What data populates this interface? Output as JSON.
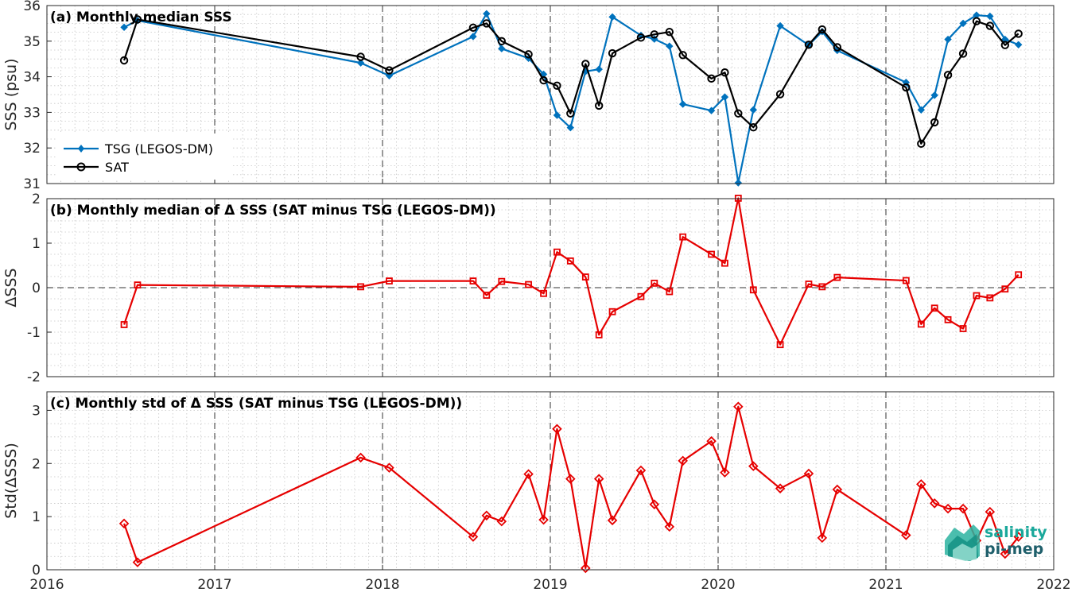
{
  "chart_data": [
    {
      "type": "line",
      "title": "(a) Monthly median SSS",
      "ylabel": "SSS (psu)",
      "xlabel": "",
      "xlim": [
        2016,
        2022
      ],
      "ylim": [
        31,
        36
      ],
      "xticks": [
        "2016",
        "2017",
        "2018",
        "2019",
        "2020",
        "2021",
        "2022"
      ],
      "yticks": [
        "31",
        "32",
        "33",
        "34",
        "35",
        "36"
      ],
      "grid": true,
      "legend_position": "lower-left",
      "series": [
        {
          "name": "TSG (LEGOS-DM)",
          "color": "#0072BD",
          "marker": "diamond",
          "x": [
            2016.46,
            2016.54,
            2017.87,
            2018.04,
            2018.54,
            2018.62,
            2018.71,
            2018.87,
            2018.96,
            2019.04,
            2019.12,
            2019.21,
            2019.29,
            2019.37,
            2019.54,
            2019.62,
            2019.71,
            2019.79,
            2019.96,
            2020.04,
            2020.12,
            2020.21,
            2020.37,
            2020.54,
            2020.62,
            2020.71,
            2021.12,
            2021.21,
            2021.29,
            2021.37,
            2021.46,
            2021.54,
            2021.62,
            2021.71,
            2021.79
          ],
          "y": [
            35.39,
            35.58,
            34.39,
            34.03,
            35.13,
            35.77,
            34.79,
            34.52,
            34.07,
            32.92,
            32.57,
            34.15,
            34.21,
            35.68,
            35.16,
            35.06,
            34.86,
            33.23,
            33.05,
            33.43,
            31.02,
            33.07,
            35.43,
            34.89,
            35.27,
            34.74,
            33.84,
            33.07,
            33.48,
            35.05,
            35.5,
            35.73,
            35.7,
            35.05,
            34.9
          ]
        },
        {
          "name": "SAT",
          "color": "#000000",
          "marker": "circle",
          "x": [
            2016.46,
            2016.54,
            2017.87,
            2018.04,
            2018.54,
            2018.62,
            2018.71,
            2018.87,
            2018.96,
            2019.04,
            2019.12,
            2019.21,
            2019.29,
            2019.37,
            2019.54,
            2019.62,
            2019.71,
            2019.79,
            2019.96,
            2020.04,
            2020.12,
            2020.21,
            2020.37,
            2020.54,
            2020.62,
            2020.71,
            2021.12,
            2021.21,
            2021.29,
            2021.37,
            2021.46,
            2021.54,
            2021.62,
            2021.71,
            2021.79
          ],
          "y": [
            34.46,
            35.61,
            34.56,
            34.18,
            35.38,
            35.5,
            35.0,
            34.63,
            33.9,
            33.75,
            32.97,
            34.36,
            33.19,
            34.66,
            35.1,
            35.19,
            35.26,
            34.61,
            33.95,
            34.12,
            32.97,
            32.58,
            33.51,
            34.9,
            35.33,
            34.83,
            33.7,
            32.12,
            32.72,
            34.05,
            34.65,
            35.56,
            35.43,
            34.89,
            35.21
          ]
        }
      ]
    },
    {
      "type": "line",
      "title": "(b) Monthly median of Δ SSS (SAT minus TSG (LEGOS-DM))",
      "ylabel": "ΔSSS",
      "xlabel": "",
      "xlim": [
        2016,
        2022
      ],
      "ylim": [
        -2,
        2
      ],
      "xticks": [
        "2016",
        "2017",
        "2018",
        "2019",
        "2020",
        "2021",
        "2022"
      ],
      "yticks": [
        "-2",
        "-1",
        "0",
        "1",
        "2"
      ],
      "grid": true,
      "series": [
        {
          "color": "#E60000",
          "marker": "square",
          "x": [
            2016.46,
            2016.54,
            2017.87,
            2018.04,
            2018.54,
            2018.62,
            2018.71,
            2018.87,
            2018.96,
            2019.04,
            2019.12,
            2019.21,
            2019.29,
            2019.37,
            2019.54,
            2019.62,
            2019.71,
            2019.79,
            2019.96,
            2020.04,
            2020.12,
            2020.21,
            2020.37,
            2020.54,
            2020.62,
            2020.71,
            2021.12,
            2021.21,
            2021.29,
            2021.37,
            2021.46,
            2021.54,
            2021.62,
            2021.71,
            2021.79
          ],
          "y": [
            -0.83,
            0.06,
            0.02,
            0.15,
            0.15,
            -0.17,
            0.14,
            0.07,
            -0.13,
            0.8,
            0.6,
            0.24,
            -1.06,
            -0.54,
            -0.2,
            0.1,
            -0.09,
            1.14,
            0.75,
            0.55,
            2.01,
            -0.05,
            -1.28,
            0.08,
            0.02,
            0.23,
            0.16,
            -0.82,
            -0.46,
            -0.72,
            -0.92,
            -0.18,
            -0.23,
            -0.03,
            0.29
          ]
        }
      ]
    },
    {
      "type": "line",
      "title": "(c) Monthly std of Δ SSS (SAT minus TSG (LEGOS-DM))",
      "ylabel": "Std(ΔSSS)",
      "xlabel": "",
      "xlim": [
        2016,
        2022
      ],
      "ylim": [
        0,
        3.35
      ],
      "xticks": [
        "2016",
        "2017",
        "2018",
        "2019",
        "2020",
        "2021",
        "2022"
      ],
      "yticks": [
        "0",
        "1",
        "2",
        "3"
      ],
      "grid": true,
      "series": [
        {
          "color": "#E60000",
          "marker": "diamond",
          "x": [
            2016.46,
            2016.54,
            2017.87,
            2018.04,
            2018.54,
            2018.62,
            2018.71,
            2018.87,
            2018.96,
            2019.04,
            2019.12,
            2019.21,
            2019.29,
            2019.37,
            2019.54,
            2019.62,
            2019.71,
            2019.79,
            2019.96,
            2020.04,
            2020.12,
            2020.21,
            2020.37,
            2020.54,
            2020.62,
            2020.71,
            2021.12,
            2021.21,
            2021.29,
            2021.37,
            2021.46,
            2021.54,
            2021.62,
            2021.71,
            2021.79
          ],
          "y": [
            0.87,
            0.14,
            2.11,
            1.92,
            0.62,
            1.02,
            0.91,
            1.8,
            0.94,
            2.65,
            1.71,
            0.03,
            1.71,
            0.93,
            1.87,
            1.23,
            0.81,
            2.05,
            2.42,
            1.83,
            3.07,
            1.95,
            1.53,
            1.81,
            0.6,
            1.51,
            0.65,
            1.61,
            1.25,
            1.15,
            1.15,
            0.55,
            1.09,
            0.3,
            0.62
          ]
        }
      ]
    }
  ],
  "legend": {
    "tsg_label": "TSG (LEGOS-DM)",
    "sat_label": "SAT"
  },
  "logo": {
    "line1": "salinity",
    "line2": "pi-mep",
    "color1": "#1aa89b",
    "color2": "#1f5f6b"
  }
}
